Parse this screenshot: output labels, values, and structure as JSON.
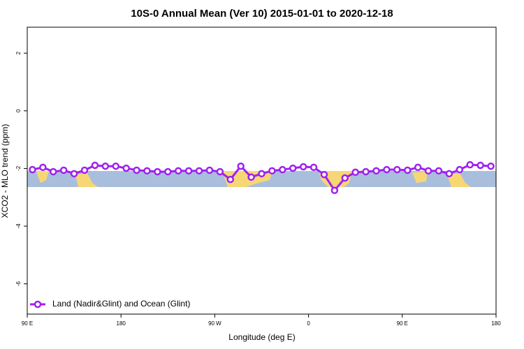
{
  "chart_data": {
    "type": "line",
    "title": "10S-0 Annual Mean (Ver 10)   2015-01-01 to 2020-12-18",
    "xlabel": "Longitude (deg E)",
    "ylabel": "XCO2 - MLO trend (ppm)",
    "xlim": [
      90,
      540
    ],
    "ylim": [
      -7.05,
      2.9
    ],
    "xticks": [
      {
        "value": 90,
        "label": "90 E"
      },
      {
        "value": 180,
        "label": "180"
      },
      {
        "value": 270,
        "label": "90 W"
      },
      {
        "value": 360,
        "label": "0"
      },
      {
        "value": 450,
        "label": "90 E"
      },
      {
        "value": 540,
        "label": "180"
      }
    ],
    "yticks": [
      2,
      0,
      -2,
      -4,
      -6
    ],
    "legend": "bottom-left",
    "x": [
      95,
      105,
      115,
      125,
      135,
      145,
      155,
      165,
      175,
      185,
      195,
      205,
      215,
      225,
      235,
      245,
      255,
      265,
      275,
      285,
      295,
      305,
      315,
      325,
      335,
      345,
      355,
      365,
      375,
      385,
      395,
      405,
      415,
      425,
      435,
      445,
      455,
      465,
      475,
      485,
      495,
      505,
      515,
      525,
      535
    ],
    "series": [
      {
        "name": "Land (Nadir&Glint) and Ocean (Glint)",
        "color": "#a020f0",
        "values": [
          -2.04,
          -1.96,
          -2.11,
          -2.06,
          -2.18,
          -2.06,
          -1.89,
          -1.92,
          -1.92,
          -1.99,
          -2.06,
          -2.08,
          -2.11,
          -2.11,
          -2.08,
          -2.08,
          -2.08,
          -2.06,
          -2.11,
          -2.38,
          -1.92,
          -2.3,
          -2.18,
          -2.08,
          -2.04,
          -1.99,
          -1.94,
          -1.96,
          -2.21,
          -2.76,
          -2.33,
          -2.13,
          -2.11,
          -2.08,
          -2.04,
          -2.04,
          -2.06,
          -1.96,
          -2.08,
          -2.08,
          -2.18,
          -2.04,
          -1.87,
          -1.89,
          -1.92
        ]
      }
    ]
  }
}
